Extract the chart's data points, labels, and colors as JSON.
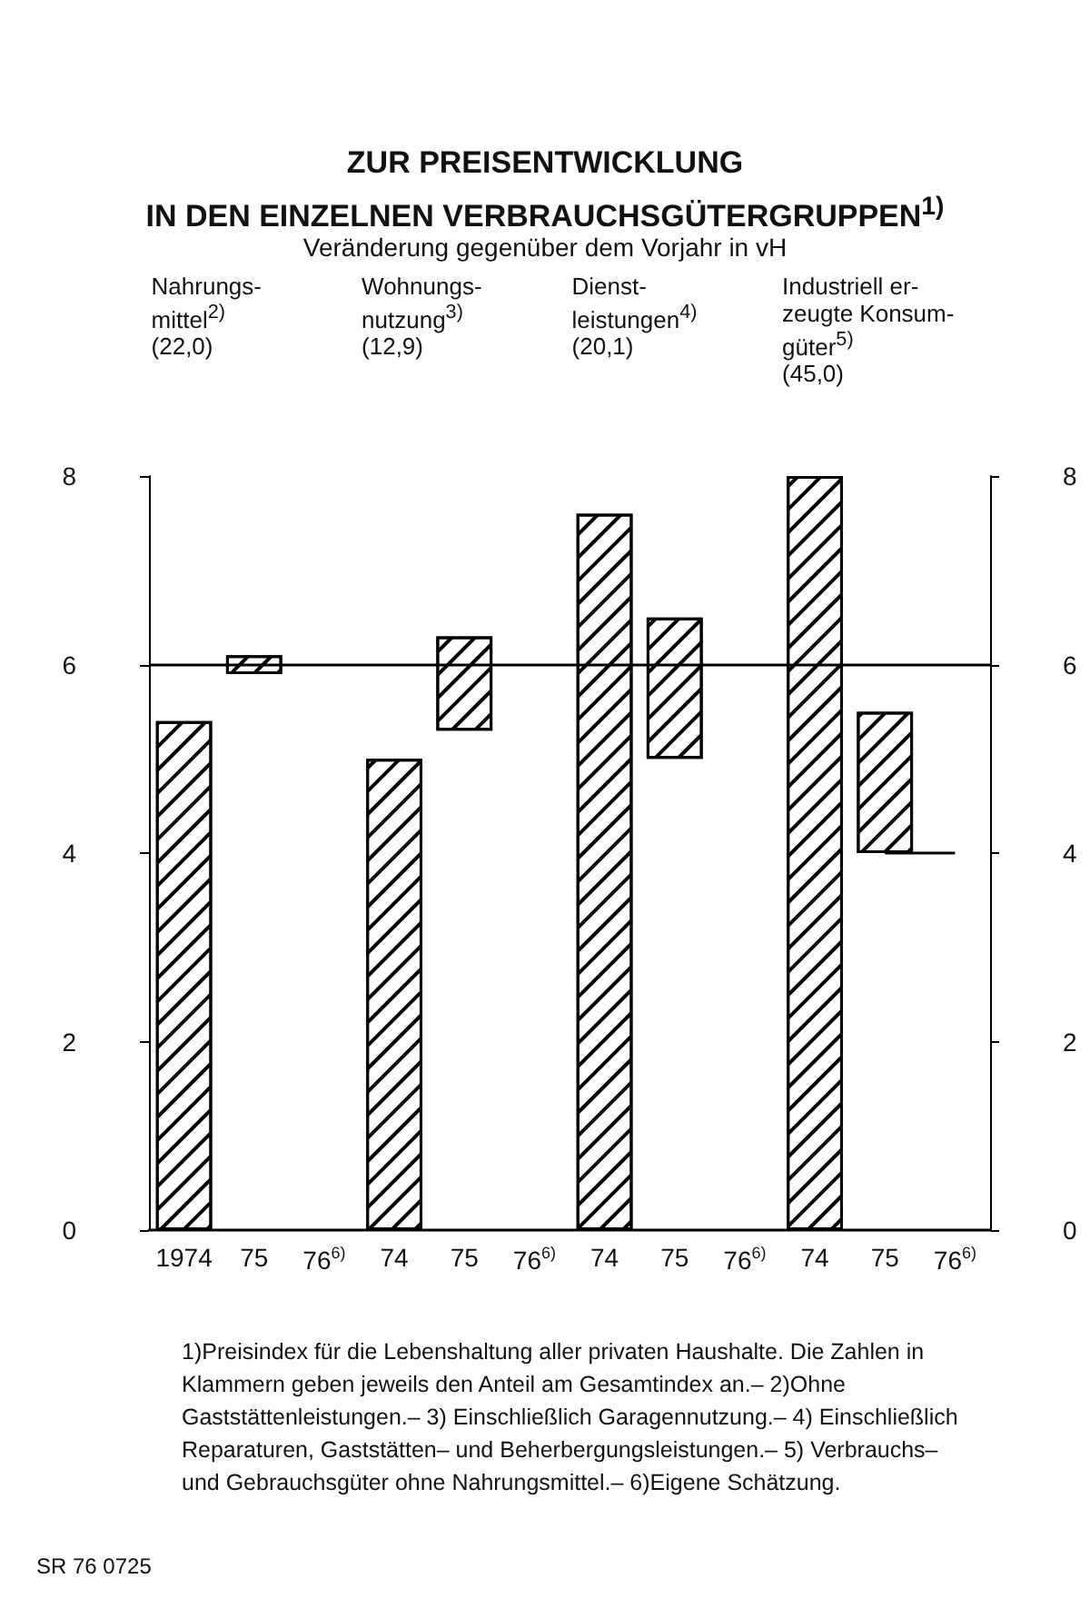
{
  "chart_data": {
    "type": "bar",
    "title": "ZUR PREISENTWICKLUNG\nIN DEN EINZELNEN VERBRAUCHSGÜTERGRUPPEN$^{1)}$",
    "subtitle": "Veränderung gegenüber dem Vorjahr in vH",
    "categories": [
      "1974",
      "75",
      "76$^{6)}$",
      "74",
      "75",
      "76$^{6)}$",
      "74",
      "75",
      "76$^{6)}$",
      "74",
      "75",
      "76$^{6)}$"
    ],
    "series": [
      {
        "color": "#000000",
        "values": [
          5.4,
          0.2,
          null,
          5.0,
          1.0,
          null,
          7.6,
          1.5,
          null,
          8.0,
          1.5,
          null
        ],
        "base": [
          0,
          5.9,
          null,
          0,
          5.3,
          null,
          0,
          5.0,
          null,
          0,
          4.0,
          null
        ]
      },
      {
        "type": "line",
        "color": "#000000",
        "values": [
          null,
          null,
          null,
          null,
          null,
          null,
          null,
          null,
          null,
          null,
          4,
          4
        ]
      }
    ],
    "ref_lines": [
      {
        "axis": "y",
        "value": 6,
        "color": "#000000"
      }
    ],
    "ylim": [
      0,
      8
    ],
    "yticks": [
      0,
      2,
      4,
      6,
      8
    ],
    "y2lim": [
      0,
      8
    ],
    "y2ticks": [
      0,
      2,
      4,
      6,
      8
    ],
    "marker": "none",
    "line_style": "solid",
    "grid": false,
    "annotations": [
      "Nahrungs-\nmittel$^{2)}$\n(22,0)",
      "Wohnungs-\nnutzung$^{3)}$\n(12,9)",
      "Dienst-\nleistungen$^{4)}$\n(20,1)",
      "Industriell er-\nzeugte Konsum-\ngüter$^{5)}$\n(45,0)",
      "1)Preisindex für die Lebenshaltung aller privaten Haushalte. Die Zahlen in Klammern geben jeweils den Anteil am Gesamtindex an.– 2)Ohne Gaststättenleistungen.– 3) Einschließlich Garagennutzung.– 4) Einschließlich Reparaturen, Gaststätten– und Beherbergungsleistungen.– 5) Verbrauchs– und Gebrauchsgüter ohne Nahrungsmittel.– 6)Eigene Schätzung.",
      "SR 76 0725"
    ]
  }
}
